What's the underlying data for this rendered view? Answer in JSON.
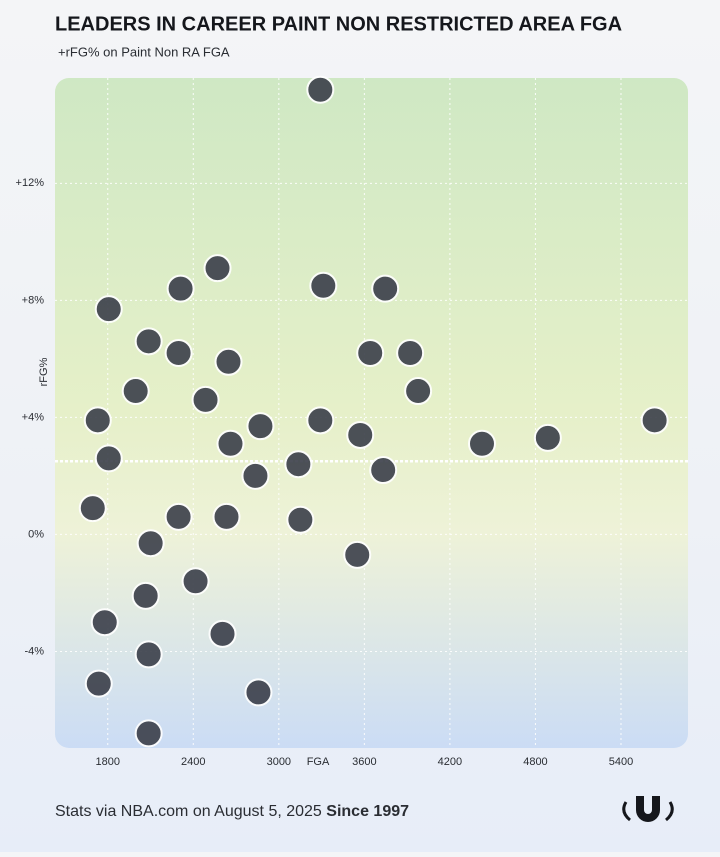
{
  "chart_data": {
    "type": "scatter",
    "title": "LEADERS IN CAREER PAINT NON RESTRICTED AREA  FGA",
    "subtitle": "+rFG% on Paint Non RA FGA",
    "x_label": "FGA",
    "y_label": "rFG%",
    "footer": "Stats via NBA.com on August 5, 2025",
    "footer_bold": "Since 1997",
    "xlim": [
      1430,
      5870
    ],
    "ylim": [
      -7.3,
      15.6
    ],
    "xticks": [
      1800,
      2400,
      3000,
      3600,
      4200,
      4800,
      5400
    ],
    "yticks": [
      {
        "value": 12,
        "label": "+12%"
      },
      {
        "value": 8,
        "label": "+8%"
      },
      {
        "value": 4,
        "label": "+4%"
      },
      {
        "value": 0,
        "label": "0%"
      },
      {
        "value": -4,
        "label": "-4%"
      }
    ],
    "grid": true,
    "hline": 2.5,
    "color": "#3b3f4a",
    "x": [
      3291,
      2570,
      3312,
      3746,
      1807,
      2311,
      4425,
      4887,
      5636,
      3550,
      2857,
      2087,
      1779,
      3151,
      3732,
      3977,
      3137,
      2836,
      2633,
      2297,
      2101,
      2066,
      2416,
      2605,
      2087,
      1737,
      1996,
      2087,
      2297,
      2647,
      3291,
      3571,
      3641,
      3921,
      2486,
      1730,
      1695,
      2871,
      1807,
      2661
    ],
    "values": [
      15.2,
      9.1,
      8.5,
      8.4,
      7.7,
      8.4,
      3.1,
      3.3,
      3.9,
      -0.7,
      -5.4,
      -6.8,
      -3.0,
      0.5,
      2.2,
      4.9,
      2.4,
      2.0,
      0.6,
      0.6,
      -0.3,
      -2.1,
      -1.6,
      -3.4,
      -4.1,
      -5.1,
      4.9,
      6.6,
      6.2,
      5.9,
      3.9,
      3.4,
      6.2,
      6.2,
      4.6,
      3.9,
      0.9,
      3.7,
      2.6,
      3.1
    ]
  }
}
